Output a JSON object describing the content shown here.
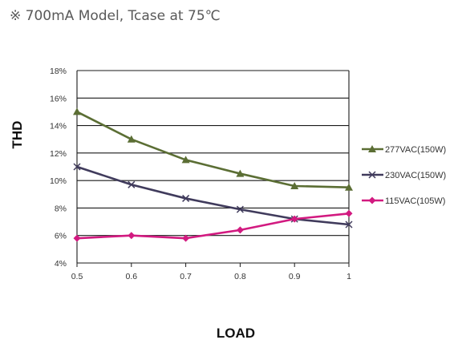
{
  "chart_data": {
    "type": "line",
    "title": "※ 700mA Model, Tcase at 75℃",
    "xlabel": "LOAD",
    "ylabel": "THD",
    "x": [
      0.5,
      0.6,
      0.7,
      0.8,
      0.9,
      1
    ],
    "x_tick_labels": [
      "0.5",
      "0.6",
      "0.7",
      "0.8",
      "0.9",
      "1"
    ],
    "xlim": [
      0.5,
      1
    ],
    "ylim": [
      4,
      18
    ],
    "y_ticks": [
      4,
      6,
      8,
      10,
      12,
      14,
      16,
      18
    ],
    "y_tick_labels": [
      "4%",
      "6%",
      "8%",
      "10%",
      "12%",
      "14%",
      "16%",
      "18%"
    ],
    "grid": "horizontal",
    "legend_position": "right",
    "series": [
      {
        "name": "277VAC(150W)",
        "color": "#5b6e34",
        "marker": "triangle",
        "values": [
          15,
          13,
          11.5,
          10.5,
          9.6,
          9.5
        ]
      },
      {
        "name": "230VAC(150W)",
        "color": "#403b5c",
        "marker": "x",
        "values": [
          11,
          9.7,
          8.7,
          7.9,
          7.2,
          6.8
        ]
      },
      {
        "name": "115VAC(105W)",
        "color": "#d21a80",
        "marker": "diamond",
        "values": [
          5.8,
          6,
          5.8,
          6.4,
          7.2,
          7.6
        ]
      }
    ]
  }
}
